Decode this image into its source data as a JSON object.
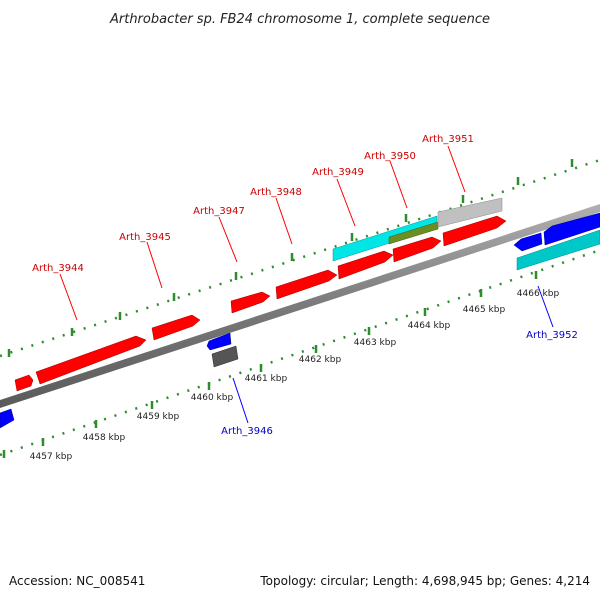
{
  "title": "Arthrobacter sp. FB24 chromosome 1, complete sequence",
  "footer": {
    "accession": "Accession: NC_008541",
    "summary": "Topology: circular; Length: 4,698,945 bp; Genes: 4,214"
  },
  "colors": {
    "forward_gene": "#ff0000",
    "reverse_gene": "#0000ff",
    "cyan_feature": "#00e5e5",
    "olive_feature": "#6b8e23",
    "grey_feature": "#b5b5b5",
    "dark_feature": "#555555",
    "backbone": "#777777",
    "ticks": "#2e8b2e",
    "forward_label": "#cc0000",
    "reverse_label": "#0000cc"
  },
  "kbp_labels": [
    "4457 kbp",
    "4458 kbp",
    "4459 kbp",
    "4460 kbp",
    "4461 kbp",
    "4462 kbp",
    "4463 kbp",
    "4464 kbp",
    "4465 kbp",
    "4466 kbp"
  ],
  "genes_forward": [
    "Arth_3944",
    "Arth_3945",
    "Arth_3947",
    "Arth_3948",
    "Arth_3949",
    "Arth_3950",
    "Arth_3951"
  ],
  "genes_reverse": [
    "Arth_3946",
    "Arth_3952"
  ]
}
